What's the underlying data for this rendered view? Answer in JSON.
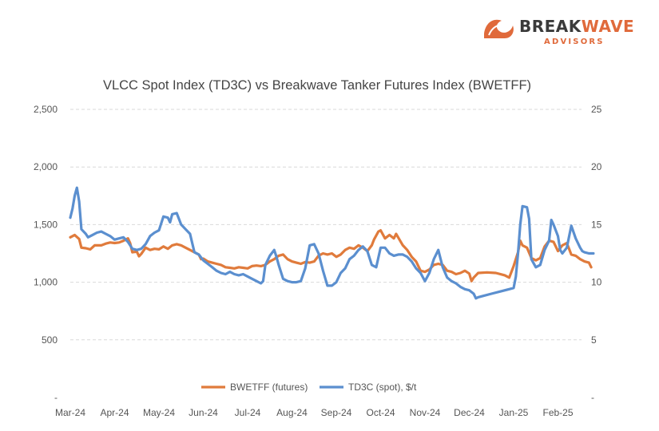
{
  "logo": {
    "line1_dark": "BREAK",
    "line1_accent": "WAVE",
    "line2": "ADVISORS",
    "accent_color": "#E06A3B",
    "dark_color": "#3a3a3a"
  },
  "chart_data": {
    "type": "line",
    "title": "VLCC Spot Index (TD3C) vs Breakwave Tanker  Futures Index (BWETFF)",
    "xlabel": "",
    "ylabel": "",
    "x_categories": [
      "Mar-24",
      "Apr-24",
      "May-24",
      "Jun-24",
      "Jul-24",
      "Aug-24",
      "Sep-24",
      "Oct-24",
      "Nov-24",
      "Dec-24",
      "Jan-25",
      "Feb-25"
    ],
    "y_left": {
      "range": [
        0,
        2500
      ],
      "ticks": [
        "-",
        "500",
        "1,000",
        "1,500",
        "2,000",
        "2,500"
      ],
      "tick_values": [
        0,
        500,
        1000,
        1500,
        2000,
        2500
      ]
    },
    "y_right": {
      "range": [
        0,
        25
      ],
      "ticks": [
        "-",
        "5",
        "10",
        "15",
        "20",
        "25"
      ],
      "tick_values": [
        0,
        5,
        10,
        15,
        20,
        25
      ]
    },
    "grid": true,
    "legend_position": "bottom",
    "series": [
      {
        "name": "BWETFF (futures)",
        "axis": "left",
        "color": "#E07B3C",
        "points": [
          [
            0.0,
            1390
          ],
          [
            0.1,
            1410
          ],
          [
            0.2,
            1375
          ],
          [
            0.25,
            1300
          ],
          [
            0.35,
            1295
          ],
          [
            0.45,
            1285
          ],
          [
            0.55,
            1320
          ],
          [
            0.7,
            1320
          ],
          [
            0.8,
            1335
          ],
          [
            0.9,
            1345
          ],
          [
            1.0,
            1340
          ],
          [
            1.1,
            1345
          ],
          [
            1.2,
            1360
          ],
          [
            1.3,
            1380
          ],
          [
            1.35,
            1340
          ],
          [
            1.4,
            1260
          ],
          [
            1.5,
            1265
          ],
          [
            1.55,
            1225
          ],
          [
            1.6,
            1245
          ],
          [
            1.7,
            1300
          ],
          [
            1.8,
            1280
          ],
          [
            1.9,
            1290
          ],
          [
            2.0,
            1285
          ],
          [
            2.1,
            1310
          ],
          [
            2.2,
            1290
          ],
          [
            2.3,
            1320
          ],
          [
            2.4,
            1330
          ],
          [
            2.5,
            1320
          ],
          [
            2.6,
            1300
          ],
          [
            2.7,
            1280
          ],
          [
            2.8,
            1260
          ],
          [
            2.9,
            1240
          ],
          [
            2.95,
            1200
          ],
          [
            3.0,
            1205
          ],
          [
            3.1,
            1180
          ],
          [
            3.2,
            1170
          ],
          [
            3.3,
            1160
          ],
          [
            3.4,
            1150
          ],
          [
            3.5,
            1130
          ],
          [
            3.6,
            1125
          ],
          [
            3.7,
            1120
          ],
          [
            3.8,
            1130
          ],
          [
            3.9,
            1125
          ],
          [
            4.0,
            1120
          ],
          [
            4.1,
            1140
          ],
          [
            4.2,
            1145
          ],
          [
            4.3,
            1140
          ],
          [
            4.4,
            1150
          ],
          [
            4.5,
            1180
          ],
          [
            4.6,
            1200
          ],
          [
            4.7,
            1230
          ],
          [
            4.8,
            1240
          ],
          [
            4.9,
            1200
          ],
          [
            5.0,
            1180
          ],
          [
            5.1,
            1170
          ],
          [
            5.2,
            1160
          ],
          [
            5.3,
            1175
          ],
          [
            5.4,
            1170
          ],
          [
            5.5,
            1180
          ],
          [
            5.6,
            1230
          ],
          [
            5.7,
            1250
          ],
          [
            5.8,
            1240
          ],
          [
            5.9,
            1250
          ],
          [
            6.0,
            1220
          ],
          [
            6.1,
            1240
          ],
          [
            6.2,
            1280
          ],
          [
            6.3,
            1300
          ],
          [
            6.4,
            1290
          ],
          [
            6.5,
            1320
          ],
          [
            6.6,
            1300
          ],
          [
            6.7,
            1270
          ],
          [
            6.8,
            1320
          ],
          [
            6.85,
            1370
          ],
          [
            6.95,
            1440
          ],
          [
            7.0,
            1450
          ],
          [
            7.1,
            1380
          ],
          [
            7.2,
            1410
          ],
          [
            7.3,
            1380
          ],
          [
            7.35,
            1420
          ],
          [
            7.5,
            1320
          ],
          [
            7.6,
            1280
          ],
          [
            7.7,
            1220
          ],
          [
            7.8,
            1180
          ],
          [
            7.9,
            1100
          ],
          [
            8.0,
            1090
          ],
          [
            8.1,
            1110
          ],
          [
            8.2,
            1150
          ],
          [
            8.3,
            1160
          ],
          [
            8.4,
            1150
          ],
          [
            8.5,
            1100
          ],
          [
            8.6,
            1090
          ],
          [
            8.7,
            1070
          ],
          [
            8.8,
            1080
          ],
          [
            8.9,
            1100
          ],
          [
            9.0,
            1075
          ],
          [
            9.05,
            1010
          ],
          [
            9.1,
            1040
          ],
          [
            9.2,
            1080
          ],
          [
            9.4,
            1085
          ],
          [
            9.6,
            1080
          ],
          [
            9.8,
            1060
          ],
          [
            9.9,
            1040
          ],
          [
            10.0,
            1140
          ],
          [
            10.1,
            1260
          ],
          [
            10.15,
            1360
          ],
          [
            10.2,
            1320
          ],
          [
            10.3,
            1300
          ],
          [
            10.4,
            1210
          ],
          [
            10.5,
            1190
          ],
          [
            10.6,
            1210
          ],
          [
            10.7,
            1310
          ],
          [
            10.8,
            1360
          ],
          [
            10.9,
            1350
          ],
          [
            11.0,
            1270
          ],
          [
            11.1,
            1320
          ],
          [
            11.2,
            1340
          ],
          [
            11.3,
            1240
          ],
          [
            11.4,
            1230
          ],
          [
            11.5,
            1200
          ],
          [
            11.6,
            1180
          ],
          [
            11.7,
            1170
          ],
          [
            11.75,
            1130
          ]
        ]
      },
      {
        "name": "TD3C (spot), $/t",
        "axis": "right",
        "color": "#5B8FCF",
        "points": [
          [
            0.0,
            15.6
          ],
          [
            0.05,
            16.4
          ],
          [
            0.1,
            17.5
          ],
          [
            0.15,
            18.2
          ],
          [
            0.2,
            17.0
          ],
          [
            0.25,
            14.6
          ],
          [
            0.35,
            14.2
          ],
          [
            0.4,
            13.9
          ],
          [
            0.5,
            14.1
          ],
          [
            0.6,
            14.3
          ],
          [
            0.7,
            14.4
          ],
          [
            0.8,
            14.2
          ],
          [
            0.9,
            14.0
          ],
          [
            1.0,
            13.7
          ],
          [
            1.1,
            13.8
          ],
          [
            1.2,
            13.9
          ],
          [
            1.3,
            13.5
          ],
          [
            1.4,
            12.9
          ],
          [
            1.5,
            12.8
          ],
          [
            1.6,
            12.9
          ],
          [
            1.7,
            13.3
          ],
          [
            1.8,
            14.0
          ],
          [
            1.9,
            14.3
          ],
          [
            2.0,
            14.5
          ],
          [
            2.1,
            15.7
          ],
          [
            2.2,
            15.6
          ],
          [
            2.25,
            15.2
          ],
          [
            2.3,
            15.9
          ],
          [
            2.4,
            16.0
          ],
          [
            2.5,
            15.0
          ],
          [
            2.6,
            14.6
          ],
          [
            2.7,
            14.2
          ],
          [
            2.8,
            12.6
          ],
          [
            2.9,
            12.4
          ],
          [
            3.0,
            11.9
          ],
          [
            3.1,
            11.6
          ],
          [
            3.2,
            11.3
          ],
          [
            3.3,
            11.0
          ],
          [
            3.4,
            10.8
          ],
          [
            3.5,
            10.7
          ],
          [
            3.6,
            10.9
          ],
          [
            3.7,
            10.7
          ],
          [
            3.8,
            10.6
          ],
          [
            3.9,
            10.7
          ],
          [
            4.0,
            10.5
          ],
          [
            4.1,
            10.3
          ],
          [
            4.2,
            10.1
          ],
          [
            4.3,
            9.9
          ],
          [
            4.35,
            10.1
          ],
          [
            4.4,
            11.5
          ],
          [
            4.5,
            12.3
          ],
          [
            4.6,
            12.8
          ],
          [
            4.65,
            12.2
          ],
          [
            4.7,
            11.5
          ],
          [
            4.8,
            10.3
          ],
          [
            4.9,
            10.1
          ],
          [
            5.0,
            10.0
          ],
          [
            5.1,
            10.0
          ],
          [
            5.2,
            10.1
          ],
          [
            5.3,
            11.2
          ],
          [
            5.4,
            13.2
          ],
          [
            5.5,
            13.3
          ],
          [
            5.6,
            12.5
          ],
          [
            5.7,
            11.0
          ],
          [
            5.8,
            9.7
          ],
          [
            5.9,
            9.7
          ],
          [
            6.0,
            10.0
          ],
          [
            6.1,
            10.8
          ],
          [
            6.2,
            11.2
          ],
          [
            6.3,
            12.0
          ],
          [
            6.4,
            12.3
          ],
          [
            6.5,
            12.8
          ],
          [
            6.6,
            13.1
          ],
          [
            6.7,
            12.7
          ],
          [
            6.8,
            11.5
          ],
          [
            6.9,
            11.3
          ],
          [
            7.0,
            13.0
          ],
          [
            7.1,
            13.0
          ],
          [
            7.2,
            12.5
          ],
          [
            7.3,
            12.3
          ],
          [
            7.4,
            12.4
          ],
          [
            7.5,
            12.4
          ],
          [
            7.6,
            12.2
          ],
          [
            7.7,
            11.8
          ],
          [
            7.8,
            11.2
          ],
          [
            7.9,
            10.8
          ],
          [
            8.0,
            10.1
          ],
          [
            8.1,
            10.8
          ],
          [
            8.2,
            12.0
          ],
          [
            8.3,
            12.8
          ],
          [
            8.4,
            11.3
          ],
          [
            8.5,
            10.4
          ],
          [
            8.6,
            10.1
          ],
          [
            8.7,
            9.9
          ],
          [
            8.8,
            9.6
          ],
          [
            8.9,
            9.4
          ],
          [
            9.0,
            9.3
          ],
          [
            9.1,
            9.0
          ],
          [
            9.15,
            8.6
          ],
          [
            9.2,
            8.7
          ],
          [
            9.3,
            8.8
          ],
          [
            9.5,
            9.0
          ],
          [
            9.7,
            9.2
          ],
          [
            9.9,
            9.4
          ],
          [
            10.0,
            9.5
          ],
          [
            10.05,
            10.5
          ],
          [
            10.1,
            12.5
          ],
          [
            10.15,
            15.0
          ],
          [
            10.2,
            16.6
          ],
          [
            10.3,
            16.5
          ],
          [
            10.35,
            15.5
          ],
          [
            10.4,
            12.0
          ],
          [
            10.5,
            11.3
          ],
          [
            10.6,
            11.5
          ],
          [
            10.7,
            12.8
          ],
          [
            10.8,
            13.6
          ],
          [
            10.85,
            15.4
          ],
          [
            10.9,
            15.0
          ],
          [
            11.0,
            14.0
          ],
          [
            11.05,
            12.8
          ],
          [
            11.1,
            12.5
          ],
          [
            11.2,
            13.0
          ],
          [
            11.3,
            14.9
          ],
          [
            11.4,
            13.8
          ],
          [
            11.5,
            13.0
          ],
          [
            11.55,
            12.7
          ],
          [
            11.6,
            12.6
          ],
          [
            11.7,
            12.5
          ],
          [
            11.8,
            12.5
          ]
        ]
      }
    ]
  }
}
